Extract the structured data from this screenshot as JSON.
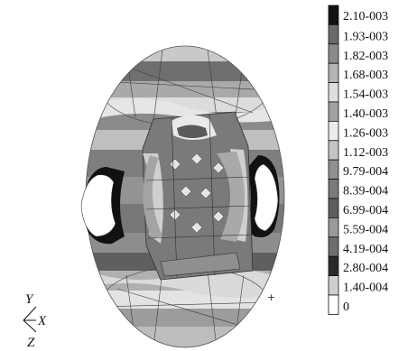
{
  "legend": {
    "entries": [
      {
        "label": "2.10-003",
        "color": "#111111"
      },
      {
        "label": "1.93-003",
        "color": "#6a6a6a"
      },
      {
        "label": "1.82-003",
        "color": "#8a8a8a"
      },
      {
        "label": "1.68-003",
        "color": "#b4b4b4"
      },
      {
        "label": "1.54-003",
        "color": "#dedede"
      },
      {
        "label": "1.40-003",
        "color": "#a2a2a2"
      },
      {
        "label": "1.26-003",
        "color": "#ececec"
      },
      {
        "label": "1.12-003",
        "color": "#c4c4c4"
      },
      {
        "label": "9.79-004",
        "color": "#909090"
      },
      {
        "label": "8.39-004",
        "color": "#7a7a7a"
      },
      {
        "label": "6.99-004",
        "color": "#5e5e5e"
      },
      {
        "label": "5.59-004",
        "color": "#9a9a9a"
      },
      {
        "label": "4.19-004",
        "color": "#6e6e6e"
      },
      {
        "label": "2.80-004",
        "color": "#2a2a2a"
      },
      {
        "label": "1.40-004",
        "color": "#cfcfcf"
      },
      {
        "label": "0",
        "color": "#ffffff"
      }
    ]
  },
  "axes": {
    "y": "Y",
    "x": "X",
    "z": "Z"
  },
  "marker": "+"
}
